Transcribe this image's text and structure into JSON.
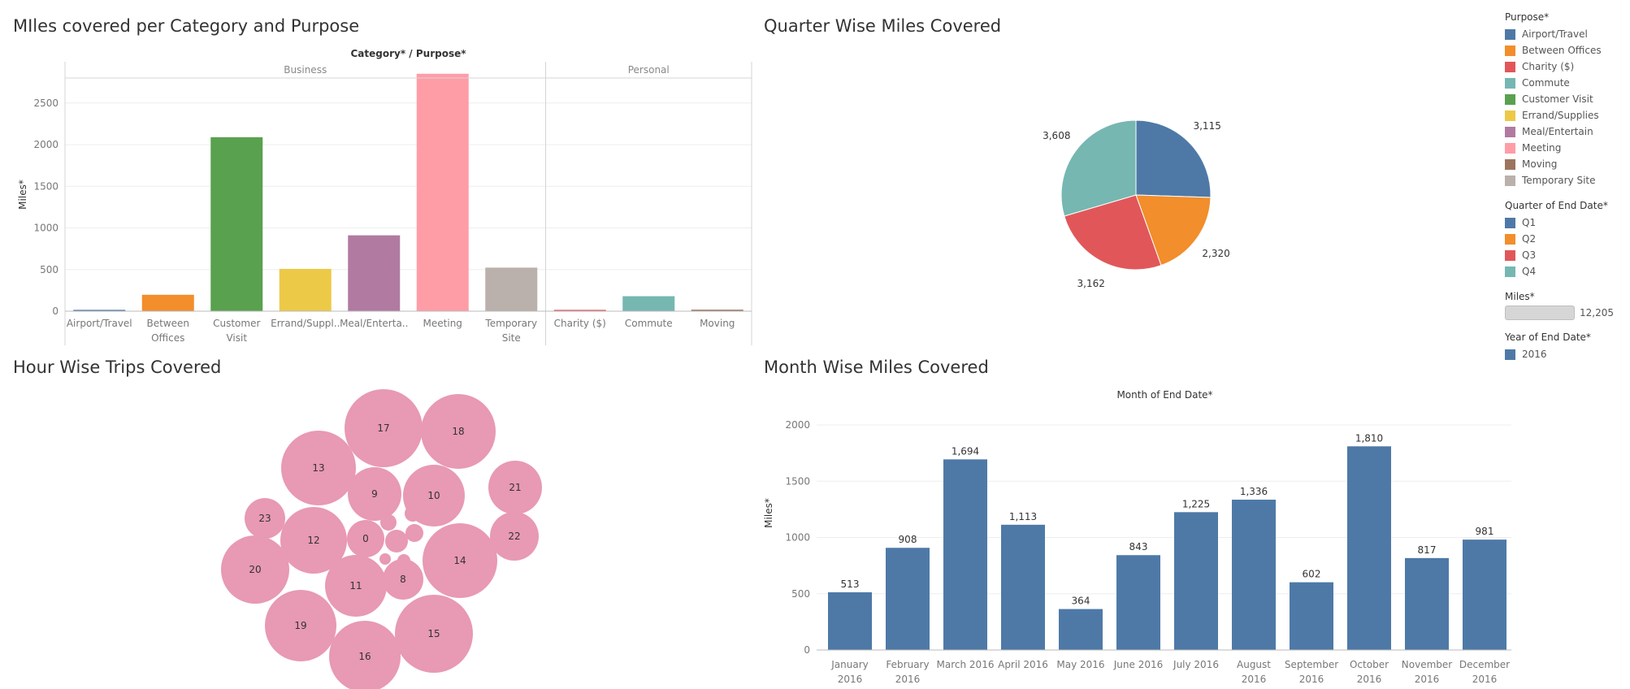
{
  "titles": {
    "p1": "MIles covered per Category and Purpose",
    "p2": "Quarter Wise Miles Covered",
    "p3": "Hour Wise Trips Covered",
    "p4": "Month Wise Miles Covered"
  },
  "legend": {
    "purpose_title": "Purpose*",
    "purpose_items": [
      {
        "label": "Airport/Travel",
        "color": "#4e79a7"
      },
      {
        "label": "Between Offices",
        "color": "#f28e2b"
      },
      {
        "label": "Charity ($)",
        "color": "#e15759"
      },
      {
        "label": "Commute",
        "color": "#76b7b2"
      },
      {
        "label": "Customer Visit",
        "color": "#59a14f"
      },
      {
        "label": "Errand/Supplies",
        "color": "#edc948"
      },
      {
        "label": "Meal/Entertain",
        "color": "#b07aa1"
      },
      {
        "label": "Meeting",
        "color": "#ff9da7"
      },
      {
        "label": "Moving",
        "color": "#9c755f"
      },
      {
        "label": "Temporary Site",
        "color": "#bab0ac"
      }
    ],
    "quarter_title": "Quarter of End Date*",
    "quarter_items": [
      {
        "label": "Q1",
        "color": "#4e79a7"
      },
      {
        "label": "Q2",
        "color": "#f28e2b"
      },
      {
        "label": "Q3",
        "color": "#e15759"
      },
      {
        "label": "Q4",
        "color": "#76b7b2"
      }
    ],
    "miles_title": "Miles*",
    "miles_value": "12,205",
    "year_title": "Year of End Date*",
    "year_items": [
      {
        "label": "2016",
        "color": "#4e79a7"
      }
    ]
  },
  "chart_data": [
    {
      "type": "bar",
      "title": "MIles covered per Category and Purpose",
      "header": "Category* / Purpose*",
      "ylabel": "Miles*",
      "ylim": [
        0,
        2800
      ],
      "yticks": [
        0,
        500,
        1000,
        1500,
        2000,
        2500
      ],
      "groups": [
        {
          "name": "Business",
          "bars": [
            {
              "category": "Airport/Travel",
              "value": 16,
              "color": "#4e79a7"
            },
            {
              "category": "Between Offices",
              "value": 197,
              "color": "#f28e2b"
            },
            {
              "category": "Customer Visit",
              "value": 2089,
              "color": "#59a14f"
            },
            {
              "category": "Errand/Suppl..",
              "value": 508,
              "color": "#edc948"
            },
            {
              "category": "Meal/Enterta..",
              "value": 911,
              "color": "#b07aa1"
            },
            {
              "category": "Meeting",
              "value": 2851,
              "color": "#ff9da7"
            },
            {
              "category": "Temporary Site",
              "value": 523,
              "color": "#bab0ac"
            }
          ]
        },
        {
          "name": "Personal",
          "bars": [
            {
              "category": "Charity ($)",
              "value": 16,
              "color": "#e15759"
            },
            {
              "category": "Commute",
              "value": 180,
              "color": "#76b7b2"
            },
            {
              "category": "Moving",
              "value": 18,
              "color": "#9c755f"
            }
          ]
        }
      ]
    },
    {
      "type": "pie",
      "title": "Quarter Wise Miles Covered",
      "slices": [
        {
          "label": "Q1",
          "value": 3115,
          "text": "3,115",
          "color": "#4e79a7"
        },
        {
          "label": "Q2",
          "value": 2320,
          "text": "2,320",
          "color": "#f28e2b"
        },
        {
          "label": "Q3",
          "value": 3162,
          "text": "3,162",
          "color": "#e15759"
        },
        {
          "label": "Q4",
          "value": 3608,
          "text": "3,608",
          "color": "#76b7b2"
        }
      ]
    },
    {
      "type": "bubble",
      "title": "Hour Wise Trips Covered",
      "color": "#e899b3",
      "bubbles": [
        {
          "label": "17",
          "r": 48
        },
        {
          "label": "18",
          "r": 46
        },
        {
          "label": "13",
          "r": 46
        },
        {
          "label": "9",
          "r": 33
        },
        {
          "label": "10",
          "r": 38
        },
        {
          "label": "21",
          "r": 33
        },
        {
          "label": "23",
          "r": 25
        },
        {
          "label": "12",
          "r": 41
        },
        {
          "label": "0",
          "r": 23
        },
        {
          "label": "22",
          "r": 30
        },
        {
          "label": "14",
          "r": 46
        },
        {
          "label": "20",
          "r": 42
        },
        {
          "label": "11",
          "r": 38
        },
        {
          "label": "8",
          "r": 25
        },
        {
          "label": "19",
          "r": 44
        },
        {
          "label": "15",
          "r": 48
        },
        {
          "label": "16",
          "r": 44
        },
        {
          "label": "",
          "r": 14
        },
        {
          "label": "",
          "r": 10
        },
        {
          "label": "",
          "r": 11
        },
        {
          "label": "",
          "r": 10
        },
        {
          "label": "",
          "r": 8
        },
        {
          "label": "",
          "r": 7
        },
        {
          "label": "",
          "r": 7
        }
      ]
    },
    {
      "type": "bar",
      "title": "Month Wise Miles Covered",
      "header": "Month of End Date*",
      "ylabel": "Miles*",
      "ylim": [
        0,
        2000
      ],
      "yticks": [
        0,
        500,
        1000,
        1500,
        2000
      ],
      "color": "#4e79a7",
      "categories": [
        [
          "January",
          "2016"
        ],
        [
          "February",
          "2016"
        ],
        [
          "March 2016"
        ],
        [
          "April 2016"
        ],
        [
          "May 2016"
        ],
        [
          "June 2016"
        ],
        [
          "July 2016"
        ],
        [
          "August",
          "2016"
        ],
        [
          "September",
          "2016"
        ],
        [
          "October",
          "2016"
        ],
        [
          "November",
          "2016"
        ],
        [
          "December",
          "2016"
        ]
      ],
      "values": [
        513,
        908,
        1694,
        1113,
        364,
        843,
        1225,
        1336,
        602,
        1810,
        817,
        981
      ],
      "value_labels": [
        "513",
        "908",
        "1,694",
        "1,113",
        "364",
        "843",
        "1,225",
        "1,336",
        "602",
        "1,810",
        "817",
        "981"
      ]
    }
  ]
}
